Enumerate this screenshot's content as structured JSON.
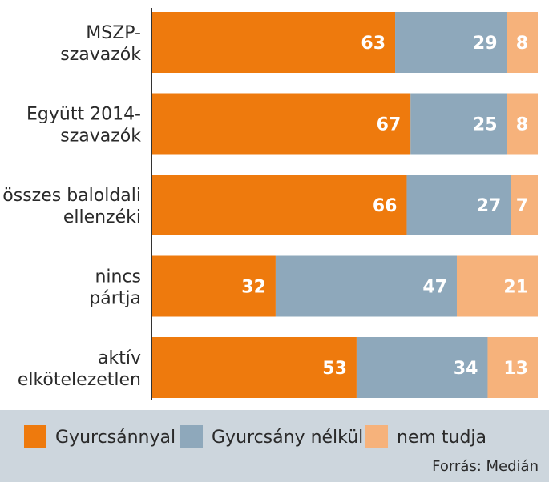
{
  "chart_data": {
    "type": "bar",
    "orientation": "horizontal",
    "stacked": true,
    "categories": [
      [
        "MSZP-",
        "szavazók"
      ],
      [
        "Együtt 2014-",
        "szavazók"
      ],
      [
        "összes baloldali",
        "ellenzéki"
      ],
      [
        "nincs",
        "pártja"
      ],
      [
        "aktív",
        "elkötelezetlen"
      ]
    ],
    "series": [
      {
        "name": "Gyurcsánnyal",
        "values": [
          63,
          67,
          66,
          32,
          53
        ],
        "color": "#ee7a0d"
      },
      {
        "name": "Gyurcsány nélkül",
        "values": [
          29,
          25,
          27,
          47,
          34
        ],
        "color": "#8ea8bb"
      },
      {
        "name": "nem tudja",
        "values": [
          8,
          8,
          7,
          21,
          13
        ],
        "color": "#f6b27b"
      }
    ],
    "xlim": [
      0,
      100
    ],
    "grid": false,
    "legend": "bottom",
    "source": "Forrás: Medián",
    "colors": {
      "legend_band": "#cdd6dd",
      "axis": "#333333"
    }
  }
}
